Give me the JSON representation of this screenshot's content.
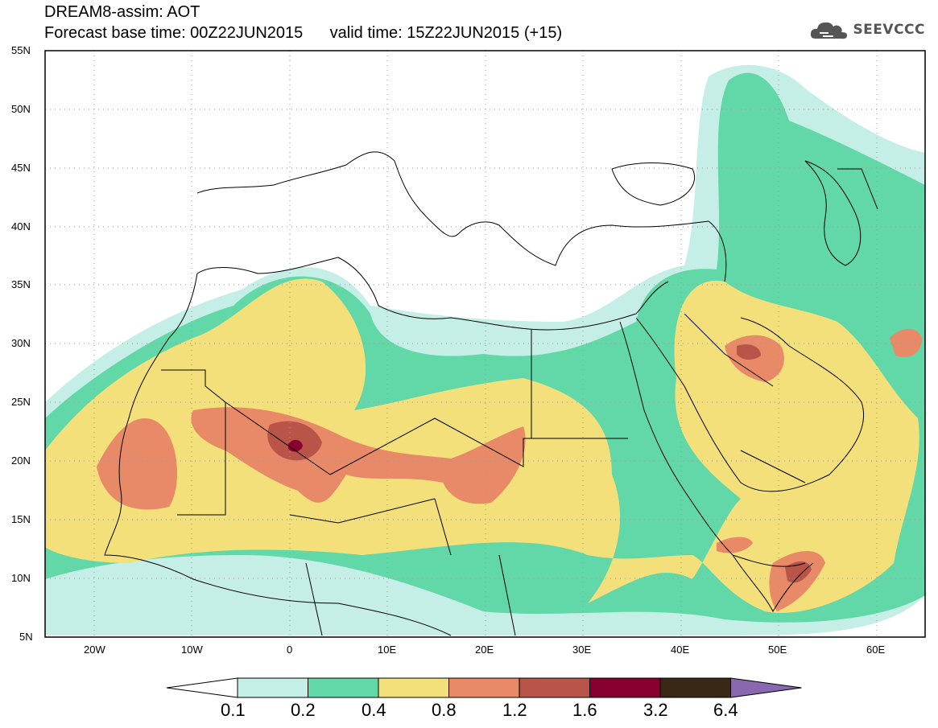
{
  "header": {
    "title": "DREAM8-assim: AOT",
    "base_time": "Forecast base time: 00Z22JUN2015",
    "valid_time": "valid time: 15Z22JUN2015 (+15)"
  },
  "logo": {
    "text": "SEEVCCC",
    "icon": "cloud-icon"
  },
  "axes": {
    "lat_labels": [
      "55N",
      "50N",
      "45N",
      "40N",
      "35N",
      "30N",
      "25N",
      "20N",
      "15N",
      "10N",
      "5N"
    ],
    "lon_labels": [
      "20W",
      "10W",
      "0",
      "10E",
      "20E",
      "30E",
      "40E",
      "50E",
      "60E"
    ],
    "lon_range": [
      -25,
      65
    ],
    "lat_range": [
      5,
      55
    ],
    "grid": "dotted"
  },
  "colorbar": {
    "levels": [
      "0.1",
      "0.2",
      "0.4",
      "0.8",
      "1.2",
      "1.6",
      "3.2",
      "6.4"
    ],
    "colors": [
      "#ffffff",
      "#c4eee6",
      "#62d8a8",
      "#f4e07a",
      "#e88a68",
      "#b85448",
      "#880030",
      "#3a2816",
      "#8a68b0"
    ]
  }
}
